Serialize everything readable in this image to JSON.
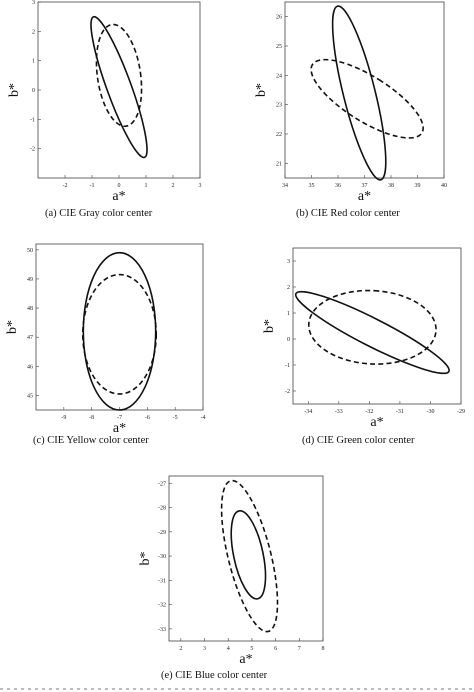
{
  "panels": [
    {
      "id": "gray",
      "caption": "(a) CIE Gray color center",
      "chart_data": {
        "type": "ellipse",
        "xlabel": "a*",
        "ylabel": "b*",
        "xlim": [
          -3,
          3
        ],
        "ylim": [
          -3,
          3
        ],
        "xticks": [
          -2,
          -1,
          0,
          1,
          2,
          3
        ],
        "yticks": [
          3,
          2,
          1,
          0,
          -1,
          -2
        ],
        "series": [
          {
            "style": "solid",
            "cx": 0.0,
            "cy": 0.1,
            "rx": 0.45,
            "ry": 2.55,
            "angle": 20
          },
          {
            "style": "dashed",
            "cx": 0.0,
            "cy": 0.5,
            "rx": 0.8,
            "ry": 1.75,
            "angle": 8
          }
        ]
      }
    },
    {
      "id": "red",
      "caption": "(b) CIE Red color center",
      "chart_data": {
        "type": "ellipse",
        "xlabel": "a*",
        "ylabel": "b*",
        "xlim": [
          34,
          40
        ],
        "ylim": [
          20.5,
          26.5
        ],
        "xticks": [
          34,
          35,
          36,
          37,
          38,
          39,
          40
        ],
        "yticks": [
          26,
          25,
          24,
          23,
          22,
          21
        ],
        "series": [
          {
            "style": "solid",
            "cx": 36.8,
            "cy": 23.4,
            "rx": 0.6,
            "ry": 3.05,
            "angle": 14
          },
          {
            "style": "dashed",
            "cx": 37.1,
            "cy": 23.2,
            "rx": 0.85,
            "ry": 2.2,
            "angle": 58
          }
        ]
      }
    },
    {
      "id": "yellow",
      "caption": "(c) CIE Yellow color center",
      "chart_data": {
        "type": "ellipse",
        "xlabel": "a*",
        "ylabel": "b*",
        "xlim": [
          -10,
          -4
        ],
        "ylim": [
          44.5,
          50.2
        ],
        "xticks": [
          -9,
          -8,
          -7,
          -6,
          -5,
          -4
        ],
        "yticks": [
          50,
          49,
          48,
          47,
          46,
          45
        ],
        "series": [
          {
            "style": "solid",
            "cx": -7.0,
            "cy": 47.2,
            "rx": 1.3,
            "ry": 2.7,
            "angle": 0
          },
          {
            "style": "dashed",
            "cx": -7.0,
            "cy": 47.1,
            "rx": 1.32,
            "ry": 2.05,
            "angle": 0
          }
        ]
      }
    },
    {
      "id": "green",
      "caption": "(d) CIE Green color center",
      "chart_data": {
        "type": "ellipse",
        "xlabel": "a*",
        "ylabel": "b*",
        "xlim": [
          -34.5,
          -29
        ],
        "ylim": [
          -2.5,
          3.5
        ],
        "xticks": [
          -34,
          -33,
          -32,
          -31,
          -30,
          -29
        ],
        "yticks": [
          3,
          2,
          1,
          0,
          -1,
          -2
        ],
        "series": [
          {
            "style": "solid",
            "cx": -31.9,
            "cy": 0.25,
            "rx": 0.45,
            "ry": 3.3,
            "angle": 63
          },
          {
            "style": "dashed",
            "cx": -31.9,
            "cy": 0.45,
            "rx": 1.2,
            "ry": 2.45,
            "angle": 87
          }
        ]
      }
    },
    {
      "id": "blue",
      "caption": "(e) CIE Blue color center",
      "chart_data": {
        "type": "ellipse",
        "xlabel": "a*",
        "ylabel": "b*",
        "xlim": [
          1.5,
          8
        ],
        "ylim": [
          -33.5,
          -26.7
        ],
        "xticks": [
          2,
          3,
          4,
          5,
          6,
          7,
          8
        ],
        "yticks": [
          -27,
          -28,
          -29,
          -30,
          -31,
          -32,
          -33
        ],
        "series": [
          {
            "style": "solid",
            "cx": 4.85,
            "cy": -29.95,
            "rx": 0.62,
            "ry": 1.85,
            "angle": 12
          },
          {
            "style": "dashed",
            "cx": 4.9,
            "cy": -30.0,
            "rx": 0.9,
            "ry": 3.2,
            "angle": 14
          }
        ]
      }
    }
  ]
}
